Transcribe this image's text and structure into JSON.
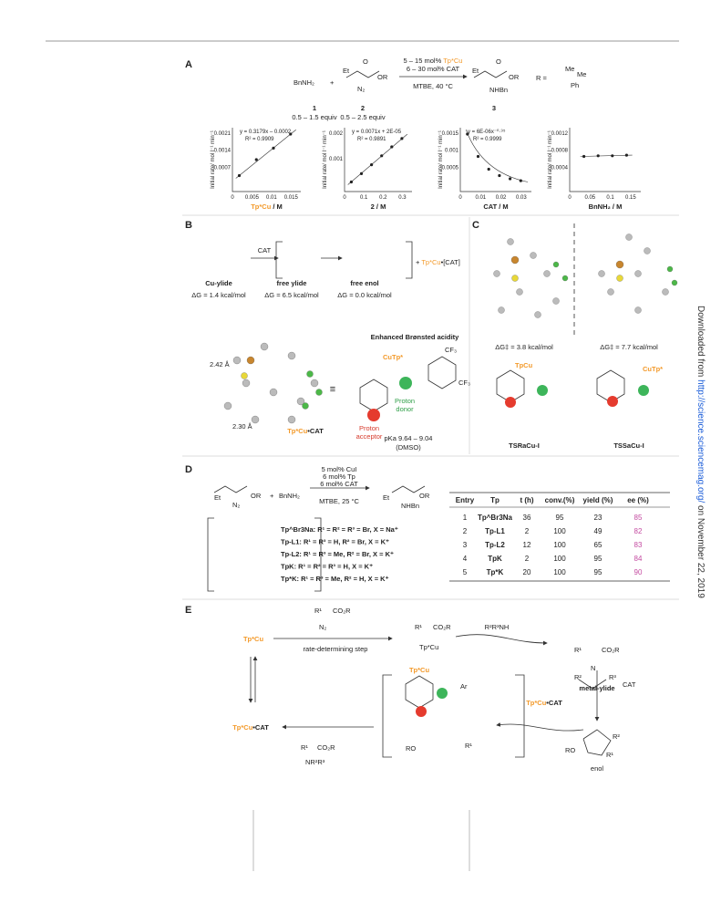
{
  "side_note": {
    "prefix": "Downloaded from",
    "link": "http://science.sciencemag.org/",
    "suffix": "on November 22, 2019"
  },
  "panel_a": {
    "label": "A",
    "reagent_1": "BnNH₂",
    "plus": "+",
    "reagent_2": {
      "et": "Et",
      "o": "O",
      "or": "OR",
      "n2": "N₂"
    },
    "conditions": [
      {
        "pre": "5 – 15 mol% ",
        "cat": "Tp*Cu"
      },
      {
        "pre": "6 – 30 mol% CAT"
      },
      {
        "pre": "MTBE, 40 °C"
      }
    ],
    "product": {
      "et": "Et",
      "o": "O",
      "or": "OR",
      "nh": "NHBn"
    },
    "numbers": [
      "1",
      "2",
      "3"
    ],
    "equiv": [
      "0.5 – 1.5 equiv",
      "0.5 – 2.5 equiv"
    ],
    "r_def": {
      "r": "R =",
      "me1": "Me",
      "me2": "Me",
      "ph": "Ph"
    },
    "plots": [
      {
        "eq": "y = 0.3179x – 0.0002",
        "r2": "R² = 0.9909",
        "ylabel": "Initial rate/ mol l⁻¹ min⁻¹",
        "yticks": [
          "0.0021",
          "0.0014",
          "0.0007"
        ],
        "xticks": [
          "0",
          "0.005",
          "0.01",
          "0.015"
        ],
        "xlabel": {
          "a": "Tp*Cu",
          "b": " / M"
        }
      },
      {
        "eq": "y = 0.0071x + 2E-05",
        "r2": "R² = 0.9891",
        "ylabel": "Initial rate/ mol l⁻¹ min⁻¹",
        "yticks": [
          "0.002",
          "0.001"
        ],
        "xticks": [
          "0",
          "0.1",
          "0.2",
          "0.3"
        ],
        "xlabel": {
          "b": "2 / M"
        }
      },
      {
        "eq": "y = 6E-06x⁻⁰·⁹⁵",
        "r2": "R² = 0.9999",
        "ylabel": "Initial rate/ mol l⁻¹ min⁻¹",
        "yticks": [
          "0.0015",
          "0.001",
          "0.0005"
        ],
        "xticks": [
          "0",
          "0.01",
          "0.02",
          "0.03"
        ],
        "xlabel": {
          "b": "CAT / M"
        }
      },
      {
        "ylabel": "Initial rate/ mol l⁻¹ min⁻¹",
        "yticks": [
          "0.0012",
          "0.0008",
          "0.0004"
        ],
        "xticks": [
          "0",
          "0.05",
          "0.1",
          "0.15"
        ],
        "xlabel": {
          "b": "BnNH₂ / M"
        }
      }
    ]
  },
  "panel_b": {
    "label": "B",
    "cat": "CAT",
    "species": [
      "Cu-ylide",
      "free ylide",
      "free enol"
    ],
    "energies": [
      "ΔG = 1.4 kcal/mol",
      "ΔG = 6.5 kcal/mol",
      "ΔG = 0.0 kcal/mol"
    ],
    "byproduct": {
      "plus": "+ ",
      "cu": "Tp*Cu",
      "rest": "•[CAT]"
    },
    "distances": [
      "2.42 Å",
      "2.30 Å"
    ],
    "complex": {
      "cu": "Tp*Cu",
      "rest": "•CAT"
    },
    "equiv_sign": "≡",
    "acidity": "Enhanced Brønsted acidity",
    "cutp": "CuTp*",
    "cf3": [
      "CF₃",
      "CF₃"
    ],
    "donor": [
      "Proton",
      "donor"
    ],
    "acceptor": [
      "Proton",
      "acceptor"
    ],
    "pka": "pKa   9.64 – 9.04",
    "solvent": "(DMSO)"
  },
  "panel_c": {
    "label": "C",
    "energies": [
      "ΔG‡ = 3.8 kcal/mol",
      "ΔG‡ = 7.7 kcal/mol"
    ],
    "cu_labels": [
      "TpCu",
      "CuTp*"
    ],
    "ts": [
      "TSRaCu-I",
      "TSSaCu-I"
    ]
  },
  "panel_d": {
    "label": "D",
    "conditions": [
      "5 mol% CuI",
      "6 mol% Tp",
      "6 mol% CAT",
      "MTBE, 25 °C"
    ],
    "reactants": {
      "et": "Et",
      "or": "OR",
      "n2": "N₂",
      "plus": "+",
      "amine": "BnNH₂"
    },
    "product": {
      "et": "Et",
      "or": "OR",
      "nh": "NHBn"
    },
    "ligands": [
      "Tp^Br3Na: R¹ = R² = R³ = Br, X = Na⁺",
      "Tp-L1: R¹ = R³ = H, R² = Br, X = K⁺",
      "Tp-L2: R¹ = R³ = Me, R² = Br, X = K⁺",
      "TpK: R¹ = R² = R³ = H, X = K⁺",
      "Tp*K: R¹ = R³ = Me, R² = H, X = K⁺"
    ],
    "table": {
      "header": [
        "Entry",
        "Tp",
        "t (h)",
        "conv.(%)",
        "yield (%)",
        "ee (%)"
      ],
      "rows": [
        [
          "1",
          "Tp^Br3Na",
          "36",
          "95",
          "23",
          "85"
        ],
        [
          "2",
          "Tp-L1",
          "2",
          "100",
          "49",
          "82"
        ],
        [
          "3",
          "Tp-L2",
          "12",
          "100",
          "65",
          "83"
        ],
        [
          "4",
          "TpK",
          "2",
          "100",
          "95",
          "84"
        ],
        [
          "5",
          "Tp*K",
          "20",
          "100",
          "95",
          "90"
        ]
      ]
    }
  },
  "panel_e": {
    "label": "E",
    "start": "Tp*Cu",
    "rds": "rate-determining step",
    "diazo": {
      "r": "R¹",
      "co2r": "CO₂R",
      "n2": "N₂"
    },
    "carbene": {
      "r": "R¹",
      "co2r": "CO₂R",
      "cu": "Tp*Cu"
    },
    "amine": "R²R³NH",
    "ylide": {
      "r1": "R¹",
      "co2r": "CO₂R",
      "n": "N",
      "r2": "R²",
      "r3": "R³",
      "name": "metal-ylide"
    },
    "cat": "CAT",
    "release": {
      "cu": "Tp*Cu",
      "rest": "•CAT"
    },
    "enol": {
      "ro": "RO",
      "r1": "R¹",
      "r2": "R²",
      "name": "enol"
    },
    "ts": {
      "cu": "Tp*Cu",
      "ar": "Ar",
      "ro": "RO",
      "r1": "R¹"
    },
    "resting": {
      "cu": "Tp*Cu",
      "rest": "•CAT"
    },
    "final": {
      "r1": "R¹",
      "co2r": "CO₂R",
      "n": "NR²R³"
    }
  }
}
